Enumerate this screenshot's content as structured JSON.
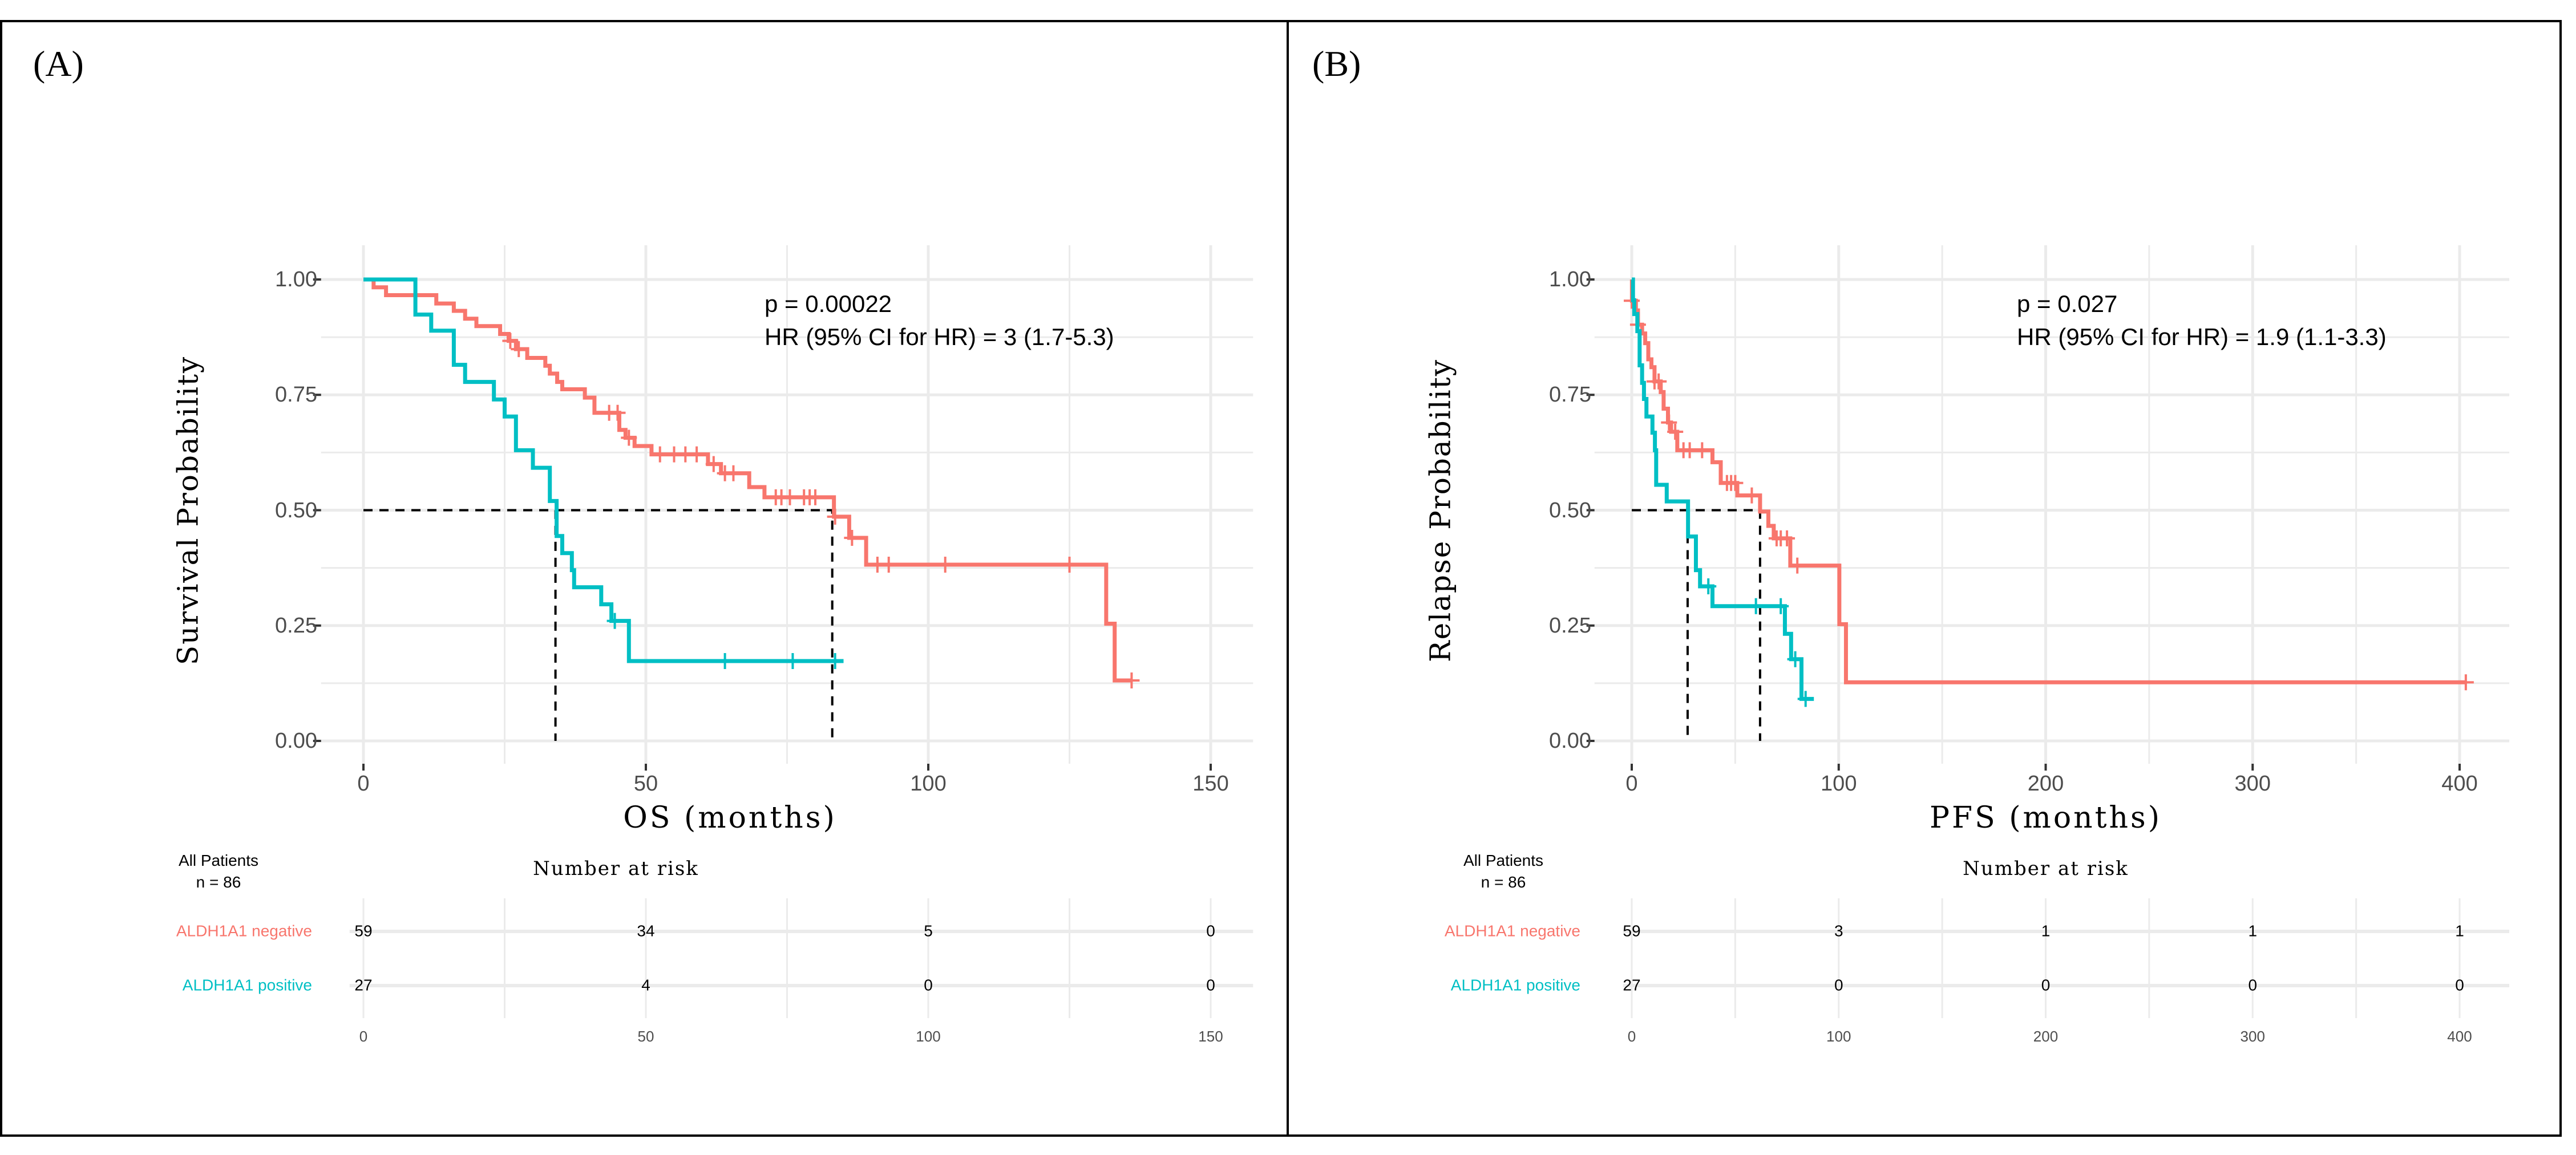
{
  "colors": {
    "negative": "#F8766D",
    "positive": "#00BFC4",
    "grid": "#EBEBEB",
    "tick": "#4D4D4D"
  },
  "chart_data": [
    {
      "type": "line",
      "panel_label": "(A)",
      "title": "",
      "xlabel": "OS (months)",
      "ylabel": "Survival Probability",
      "xlim": [
        -7.5,
        157.5
      ],
      "ylim": [
        0,
        1
      ],
      "xticks": [
        0,
        50,
        100,
        150
      ],
      "yticks": [
        "0.00",
        "0.25",
        "0.50",
        "0.75",
        "1.00"
      ],
      "annotation": [
        "p = 0.00022",
        "HR (95% CI for HR) = 3 (1.7-5.3)"
      ],
      "medians": {
        "ALDH1A1 positive": 34,
        "ALDH1A1 negative": 83
      },
      "series": [
        {
          "name": "ALDH1A1 negative",
          "color": "#F8766D",
          "end": 136,
          "steps": [
            [
              0,
              1
            ],
            [
              1.8,
              0.983
            ],
            [
              4,
              0.966
            ],
            [
              12.9,
              0.948
            ],
            [
              16,
              0.932
            ],
            [
              18,
              0.915
            ],
            [
              20,
              0.899
            ],
            [
              24.2,
              0.882
            ],
            [
              25.7,
              0.867
            ],
            [
              27,
              0.849
            ],
            [
              29,
              0.83
            ],
            [
              32.2,
              0.813
            ],
            [
              33,
              0.796
            ],
            [
              34.3,
              0.778
            ],
            [
              35.2,
              0.762
            ],
            [
              39.2,
              0.744
            ],
            [
              40.9,
              0.711
            ],
            [
              45.3,
              0.674
            ],
            [
              46.4,
              0.657
            ],
            [
              48,
              0.639
            ],
            [
              51,
              0.621
            ],
            [
              61,
              0.6
            ],
            [
              63.3,
              0.58
            ],
            [
              68.3,
              0.55
            ],
            [
              71,
              0.528
            ],
            [
              83.3,
              0.486
            ],
            [
              86,
              0.44
            ],
            [
              89,
              0.382
            ],
            [
              131.5,
              0.254
            ],
            [
              133,
              0.131
            ]
          ],
          "censored": [
            [
              26,
              0.867
            ],
            [
              27.5,
              0.849
            ],
            [
              43.5,
              0.711
            ],
            [
              45,
              0.711
            ],
            [
              47,
              0.657
            ],
            [
              52.5,
              0.621
            ],
            [
              55,
              0.621
            ],
            [
              57,
              0.621
            ],
            [
              59,
              0.621
            ],
            [
              62,
              0.6
            ],
            [
              64,
              0.58
            ],
            [
              65.5,
              0.58
            ],
            [
              73,
              0.528
            ],
            [
              74,
              0.528
            ],
            [
              75.5,
              0.528
            ],
            [
              78,
              0.528
            ],
            [
              79,
              0.528
            ],
            [
              80,
              0.528
            ],
            [
              83.5,
              0.486
            ],
            [
              86.5,
              0.44
            ],
            [
              91,
              0.382
            ],
            [
              93,
              0.382
            ],
            [
              103,
              0.382
            ],
            [
              125,
              0.382
            ],
            [
              136,
              0.131
            ]
          ]
        },
        {
          "name": "ALDH1A1 positive",
          "color": "#00BFC4",
          "end": 85,
          "steps": [
            [
              0,
              1
            ],
            [
              9.2,
              0.924
            ],
            [
              12,
              0.889
            ],
            [
              16,
              0.815
            ],
            [
              18,
              0.778
            ],
            [
              23.1,
              0.74
            ],
            [
              25,
              0.703
            ],
            [
              27,
              0.63
            ],
            [
              30,
              0.592
            ],
            [
              33,
              0.52
            ],
            [
              34.2,
              0.444
            ],
            [
              35.2,
              0.407
            ],
            [
              36.9,
              0.37
            ],
            [
              37.3,
              0.333
            ],
            [
              42.1,
              0.296
            ],
            [
              43.9,
              0.26
            ],
            [
              47,
              0.173
            ]
          ],
          "censored": [
            [
              44.5,
              0.26
            ],
            [
              64,
              0.173
            ],
            [
              76,
              0.173
            ],
            [
              83.5,
              0.173
            ]
          ]
        }
      ],
      "risk_table": {
        "title": "Number at risk",
        "all_patients": "All Patients",
        "n": "n = 86",
        "times": [
          0,
          50,
          100,
          150
        ],
        "rows": [
          {
            "label": "ALDH1A1 negative",
            "values": [
              "59",
              "34",
              "5",
              "0"
            ]
          },
          {
            "label": "ALDH1A1 positive",
            "values": [
              "27",
              "4",
              "0",
              "0"
            ]
          }
        ]
      }
    },
    {
      "type": "line",
      "panel_label": "(B)",
      "title": "",
      "xlabel": "PFS (months)",
      "ylabel": "Relapse Probability",
      "xlim": [
        -18,
        424
      ],
      "ylim": [
        0,
        1
      ],
      "xticks": [
        0,
        100,
        200,
        300,
        400
      ],
      "yticks": [
        "0.00",
        "0.25",
        "0.50",
        "0.75",
        "1.00"
      ],
      "annotation": [
        "p = 0.027",
        "HR (95% CI for HR) = 1.9 (1.1-3.3)"
      ],
      "medians": {
        "ALDH1A1 positive": 27,
        "ALDH1A1 negative": 62
      },
      "series": [
        {
          "name": "ALDH1A1 negative",
          "color": "#F8766D",
          "end": 403,
          "steps": [
            [
              0,
              1
            ],
            [
              0.1,
              0.954
            ],
            [
              2,
              0.933
            ],
            [
              3,
              0.902
            ],
            [
              5,
              0.883
            ],
            [
              6.5,
              0.862
            ],
            [
              8,
              0.827
            ],
            [
              9.5,
              0.81
            ],
            [
              11,
              0.779
            ],
            [
              14,
              0.756
            ],
            [
              15.4,
              0.72
            ],
            [
              17.5,
              0.69
            ],
            [
              19,
              0.67
            ],
            [
              22,
              0.63
            ],
            [
              39,
              0.604
            ],
            [
              43,
              0.559
            ],
            [
              51,
              0.532
            ],
            [
              62,
              0.497
            ],
            [
              66,
              0.466
            ],
            [
              68.6,
              0.439
            ],
            [
              76.6,
              0.38
            ],
            [
              100.3,
              0.253
            ],
            [
              103.5,
              0.127
            ]
          ],
          "censored": [
            [
              0,
              0.954
            ],
            [
              3,
              0.902
            ],
            [
              11,
              0.779
            ],
            [
              13,
              0.779
            ],
            [
              18,
              0.69
            ],
            [
              21,
              0.67
            ],
            [
              25,
              0.63
            ],
            [
              28,
              0.63
            ],
            [
              34,
              0.63
            ],
            [
              46,
              0.559
            ],
            [
              48,
              0.559
            ],
            [
              50,
              0.559
            ],
            [
              58,
              0.532
            ],
            [
              70,
              0.439
            ],
            [
              72,
              0.439
            ],
            [
              75,
              0.439
            ],
            [
              80,
              0.38
            ],
            [
              403,
              0.127
            ]
          ]
        },
        {
          "name": "ALDH1A1 positive",
          "color": "#00BFC4",
          "end": 88,
          "steps": [
            [
              0,
              1
            ],
            [
              0.6,
              0.955
            ],
            [
              1.2,
              0.925
            ],
            [
              2.7,
              0.888
            ],
            [
              3.8,
              0.814
            ],
            [
              5,
              0.776
            ],
            [
              5.9,
              0.741
            ],
            [
              7.1,
              0.703
            ],
            [
              10,
              0.668
            ],
            [
              11.2,
              0.63
            ],
            [
              11.8,
              0.555
            ],
            [
              16.9,
              0.519
            ],
            [
              27.2,
              0.443
            ],
            [
              31,
              0.37
            ],
            [
              33,
              0.335
            ],
            [
              39,
              0.292
            ],
            [
              74,
              0.232
            ],
            [
              77,
              0.177
            ],
            [
              82,
              0.091
            ]
          ],
          "censored": [
            [
              37,
              0.335
            ],
            [
              60,
              0.292
            ],
            [
              72,
              0.292
            ],
            [
              79,
              0.177
            ],
            [
              84,
              0.091
            ]
          ]
        }
      ],
      "risk_table": {
        "title": "Number at risk",
        "all_patients": "All Patients",
        "n": "n = 86",
        "times": [
          0,
          100,
          200,
          300,
          400
        ],
        "rows": [
          {
            "label": "ALDH1A1 negative",
            "values": [
              "59",
              "3",
              "1",
              "1",
              "1"
            ]
          },
          {
            "label": "ALDH1A1 positive",
            "values": [
              "27",
              "0",
              "0",
              "0",
              "0"
            ]
          }
        ]
      }
    }
  ]
}
